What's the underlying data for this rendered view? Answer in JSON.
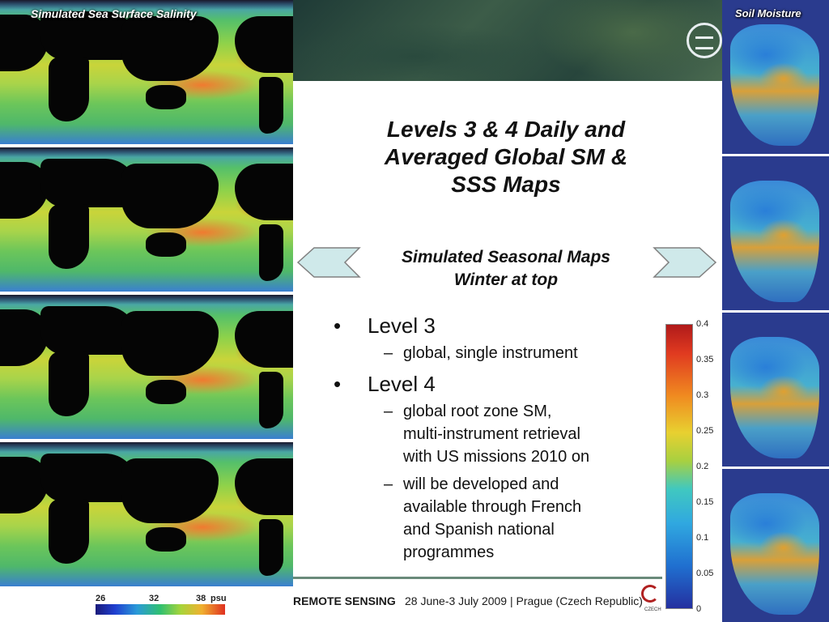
{
  "left_panel": {
    "title": "Simulated Sea Surface Salinity",
    "legend": {
      "ticks": [
        "26",
        "32",
        "38"
      ],
      "unit": "psu"
    },
    "map_count": 4
  },
  "right_panel": {
    "title": "Soil Moisture",
    "map_count": 4,
    "colorbar": {
      "ticks": [
        "0.4",
        "0.35",
        "0.3",
        "0.25",
        "0.2",
        "0.15",
        "0.1",
        "0.05",
        "0"
      ]
    }
  },
  "slide": {
    "title_lines": [
      "Levels 3 & 4  Daily and",
      "Averaged Global SM &",
      "SSS Maps"
    ],
    "subtitle_lines": [
      "Simulated Seasonal Maps",
      "Winter at top"
    ],
    "bullets": [
      {
        "label": "Level 3",
        "subs": [
          [
            "global, single instrument"
          ]
        ]
      },
      {
        "label": "Level 4",
        "subs": [
          [
            "global root zone SM,",
            "multi-instrument retrieval",
            "with US missions 2010 on"
          ],
          [
            "will be developed and",
            "available through French",
            "and Spanish national",
            "programmes"
          ]
        ]
      }
    ],
    "bullet_glyph": "•",
    "dash_glyph": "–"
  },
  "footer": {
    "conference": "REMOTE SENSING",
    "date_place": "28 June-3 July 2009 | Prague (Czech Republic)",
    "emblem_text": "CZECH"
  },
  "colors": {
    "arrow_fill": "#cfe9ea",
    "arrow_stroke": "#808080",
    "header_green": "#2e4c40",
    "footer_line": "#6a8a7a"
  }
}
